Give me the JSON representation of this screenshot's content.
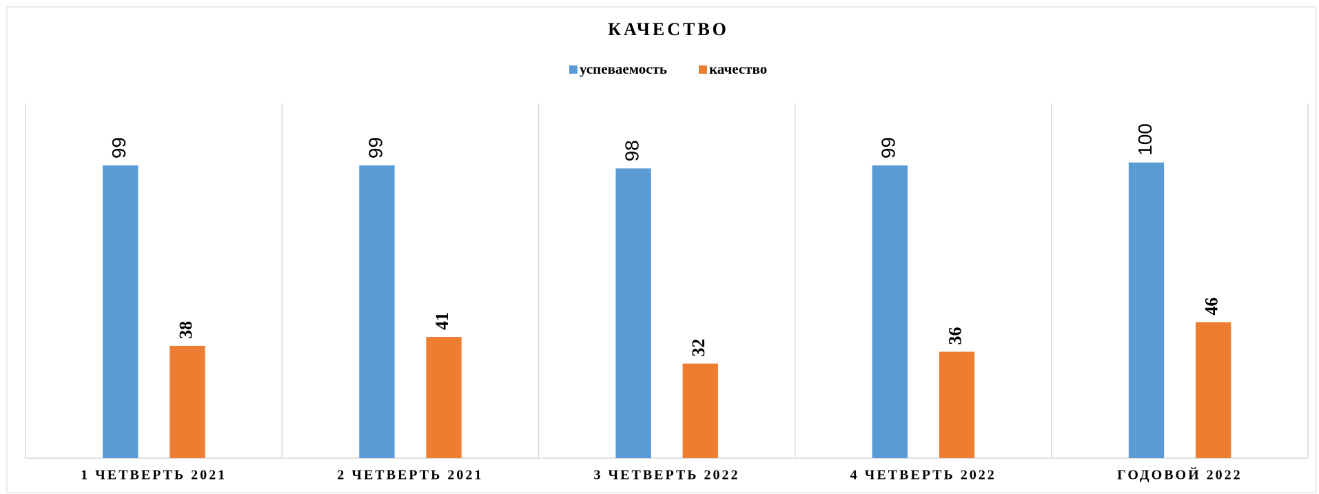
{
  "chart_data": {
    "type": "bar",
    "title": "КАЧЕСТВО",
    "categories": [
      "1 ЧЕТВЕРТЬ 2021",
      "2 ЧЕТВЕРТЬ 2021",
      "3 ЧЕТВЕРТЬ 2022",
      "4 ЧЕТВЕРТЬ 2022",
      "ГОДОВОЙ 2022"
    ],
    "series": [
      {
        "name": "успеваемость",
        "color": "#5b9bd5",
        "values": [
          99,
          99,
          98,
          99,
          100
        ]
      },
      {
        "name": "качество",
        "color": "#ed7d31",
        "values": [
          38,
          41,
          32,
          36,
          46
        ]
      }
    ],
    "ylim": [
      0,
      120
    ],
    "legend": "top"
  }
}
